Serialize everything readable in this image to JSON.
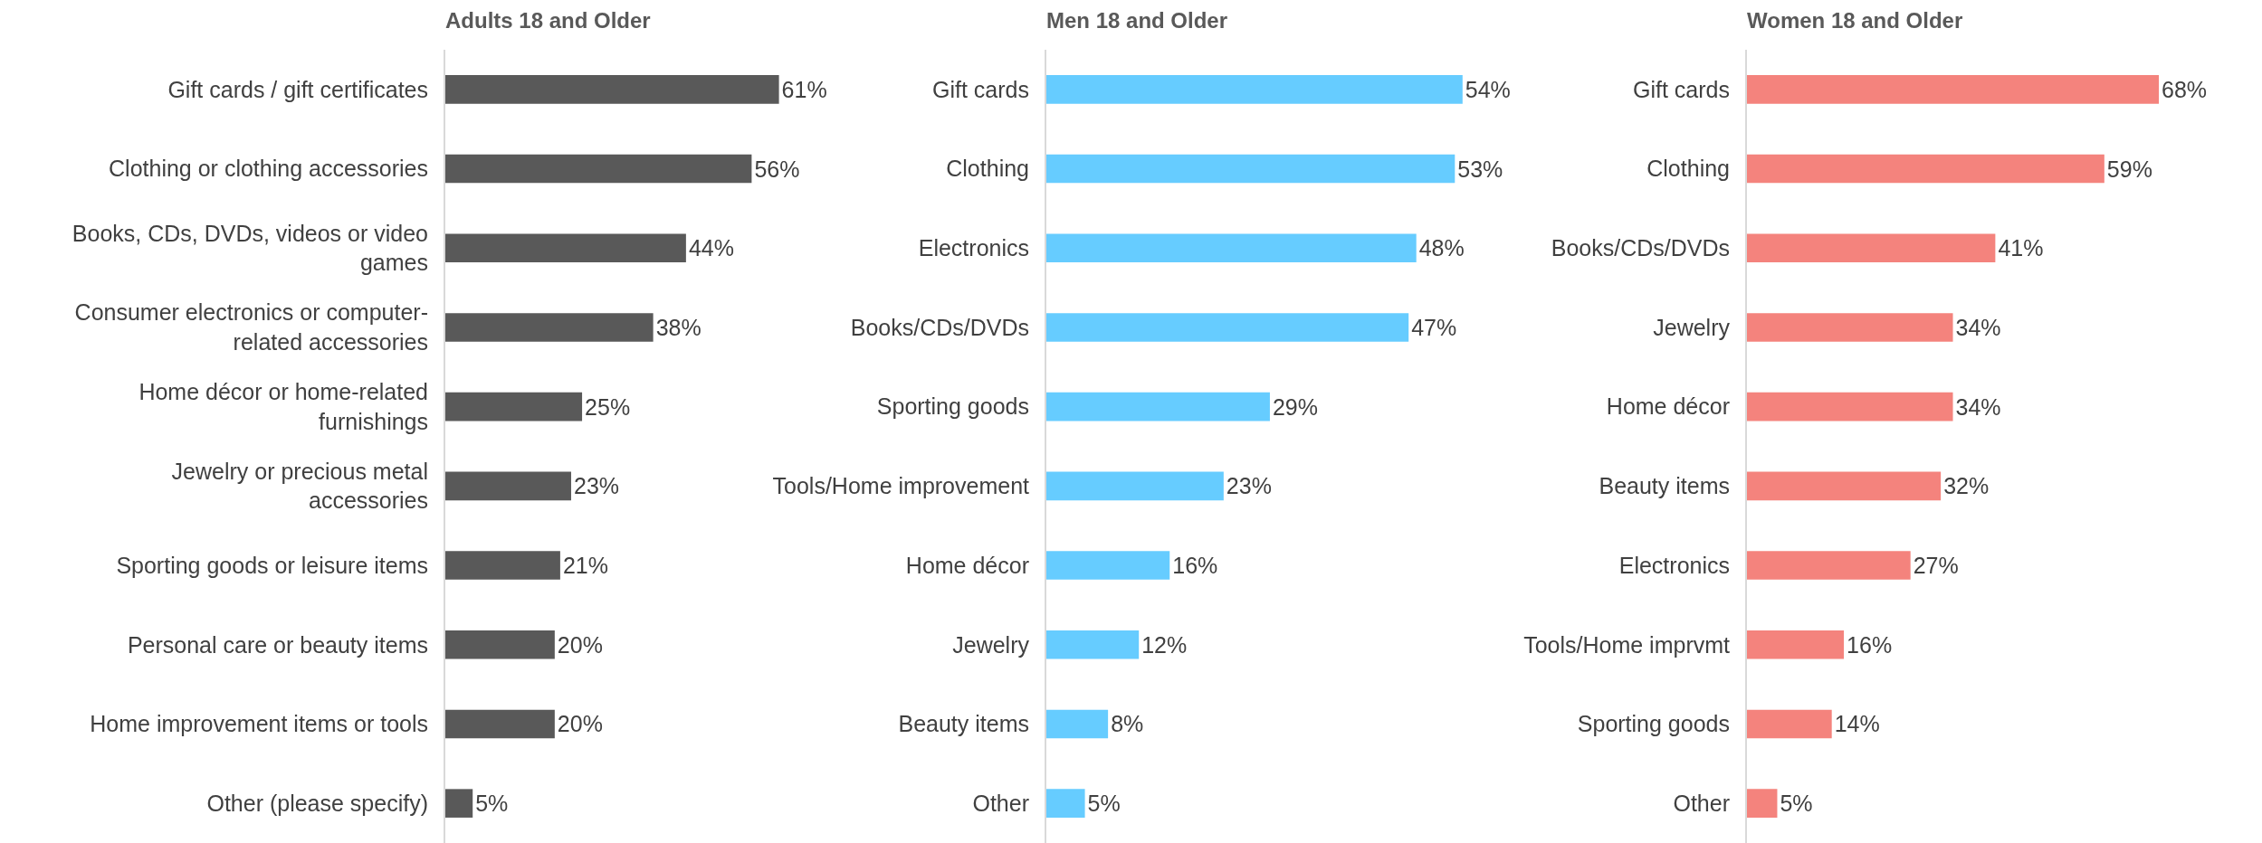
{
  "chart_data": [
    {
      "type": "bar",
      "orientation": "horizontal",
      "title": "Adults 18 and Older",
      "categories": [
        "Gift cards / gift certificates",
        "Clothing or clothing accessories",
        "Books, CDs, DVDs, videos or video games",
        "Consumer electronics or computer-related accessories",
        "Home décor or home-related furnishings",
        "Jewelry or precious metal accessories",
        "Sporting goods or leisure items",
        "Personal care or beauty items",
        "Home improvement items or tools",
        "Other (please specify)"
      ],
      "values": [
        61,
        56,
        44,
        38,
        25,
        23,
        21,
        20,
        20,
        5
      ],
      "value_labels": [
        "61%",
        "56%",
        "44%",
        "38%",
        "25%",
        "23%",
        "21%",
        "20%",
        "20%",
        "5%"
      ],
      "color": "#595959",
      "tick_labels": "y"
    },
    {
      "type": "bar",
      "orientation": "horizontal",
      "title": "Men 18 and Older",
      "categories": [
        "Gift cards",
        "Clothing",
        "Electronics",
        "Books/CDs/DVDs",
        "Sporting goods",
        "Tools/Home improvement",
        "Home décor",
        "Jewelry",
        "Beauty items",
        "Other"
      ],
      "values": [
        54,
        53,
        48,
        47,
        29,
        23,
        16,
        12,
        8,
        5
      ],
      "value_labels": [
        "54%",
        "53%",
        "48%",
        "47%",
        "29%",
        "23%",
        "16%",
        "12%",
        "8%",
        "5%"
      ],
      "color": "#66ccff",
      "tick_labels": "y"
    },
    {
      "type": "bar",
      "orientation": "horizontal",
      "title": "Women 18 and Older",
      "categories": [
        "Gift cards",
        "Clothing",
        "Books/CDs/DVDs",
        "Jewelry",
        "Home décor",
        "Beauty items",
        "Electronics",
        "Tools/Home imprvmt",
        "Sporting goods",
        "Other"
      ],
      "values": [
        68,
        59,
        41,
        34,
        34,
        32,
        27,
        16,
        14,
        5
      ],
      "value_labels": [
        "68%",
        "59%",
        "41%",
        "34%",
        "34%",
        "32%",
        "27%",
        "16%",
        "14%",
        "5%"
      ],
      "color": "#f4837d",
      "tick_labels": "y"
    }
  ]
}
